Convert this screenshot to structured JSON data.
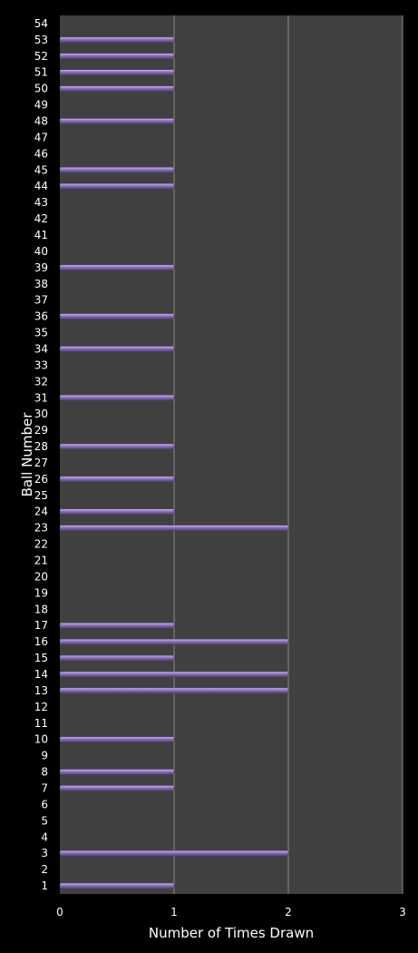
{
  "chart_data": {
    "type": "bar",
    "orientation": "horizontal",
    "categories": [
      "1",
      "2",
      "3",
      "4",
      "5",
      "6",
      "7",
      "8",
      "9",
      "10",
      "11",
      "12",
      "13",
      "14",
      "15",
      "16",
      "17",
      "18",
      "19",
      "20",
      "21",
      "22",
      "23",
      "24",
      "25",
      "26",
      "27",
      "28",
      "29",
      "30",
      "31",
      "32",
      "33",
      "34",
      "35",
      "36",
      "37",
      "38",
      "39",
      "40",
      "41",
      "42",
      "43",
      "44",
      "45",
      "46",
      "47",
      "48",
      "49",
      "50",
      "51",
      "52",
      "53",
      "54"
    ],
    "values": [
      1,
      0,
      2,
      0,
      0,
      0,
      1,
      1,
      0,
      1,
      0,
      0,
      2,
      2,
      1,
      2,
      1,
      0,
      0,
      0,
      0,
      0,
      2,
      1,
      0,
      1,
      0,
      1,
      0,
      0,
      1,
      0,
      0,
      1,
      0,
      1,
      0,
      0,
      1,
      0,
      0,
      0,
      0,
      1,
      1,
      0,
      0,
      1,
      0,
      1,
      1,
      1,
      1,
      0
    ],
    "xlabel": "Number of Times Drawn",
    "ylabel": "Ball Number",
    "xlim": [
      0,
      3
    ],
    "xticks": [
      "0",
      "1",
      "2",
      "3"
    ],
    "grid": true,
    "legend": "none",
    "colors": {
      "background": "#000000",
      "plot_area": "#404040",
      "bar": "#8a72b8",
      "bar_highlight": "#c9b8ec",
      "bar_shadow": "#4f3f72",
      "gridline": "#8a8a8a",
      "text": "#ffffff"
    }
  }
}
